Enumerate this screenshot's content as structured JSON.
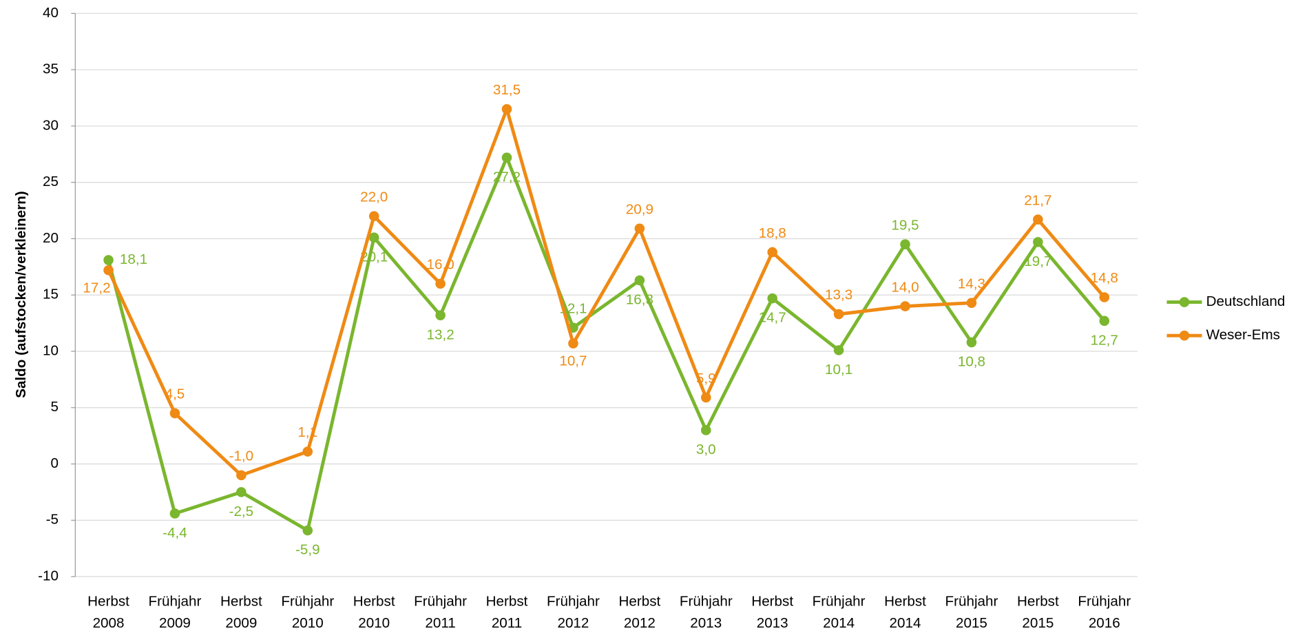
{
  "chart_data": {
    "type": "line",
    "y_label": "Saldo (aufstocken/verkleinern)",
    "categories": [
      "Herbst 2008",
      "Frühjahr 2009",
      "Herbst 2009",
      "Frühjahr 2010",
      "Herbst 2010",
      "Frühjahr 2011",
      "Herbst 2011",
      "Frühjahr 2012",
      "Herbst 2012",
      "Frühjahr 2013",
      "Herbst 2013",
      "Frühjahr 2014",
      "Herbst 2014",
      "Frühjahr 2015",
      "Herbst 2015",
      "Frühjahr 2016"
    ],
    "series": [
      {
        "name": "Deutschland",
        "color": "#7ab62e",
        "values": [
          18.1,
          -4.4,
          -2.5,
          -5.9,
          20.1,
          13.2,
          27.2,
          12.1,
          16.3,
          3.0,
          14.7,
          10.1,
          19.5,
          10.8,
          19.7,
          12.7
        ],
        "value_labels": [
          "18,1",
          "-4,4",
          "-2,5",
          "-5,9",
          "20,1",
          "13,2",
          "27,2",
          "12,1",
          "16,3",
          "3,0",
          "14,7",
          "10,1",
          "19,5",
          "10,8",
          "19,7",
          "12,7"
        ]
      },
      {
        "name": "Weser-Ems",
        "color": "#ef8a14",
        "values": [
          17.2,
          4.5,
          -1.0,
          1.1,
          22.0,
          16.0,
          31.5,
          10.7,
          20.9,
          5.9,
          18.8,
          13.3,
          14.0,
          14.3,
          21.7,
          14.8
        ],
        "value_labels": [
          "17,2",
          "4,5",
          "-1,0",
          "1,1",
          "22,0",
          "16,0",
          "31,5",
          "10,7",
          "20,9",
          "5,9",
          "18,8",
          "13,3",
          "14,0",
          "14,3",
          "21,7",
          "14,8"
        ]
      }
    ],
    "ylim": [
      -10,
      40
    ],
    "yticks": [
      -10,
      -5,
      0,
      5,
      10,
      15,
      20,
      25,
      30,
      35,
      40
    ],
    "grid": true,
    "legend": "right"
  }
}
